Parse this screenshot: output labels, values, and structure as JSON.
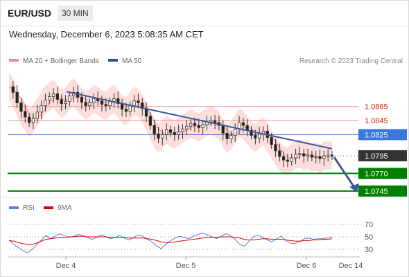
{
  "header": {
    "symbol": "EUR/USD",
    "timeframe": "30 MIN",
    "timestamp": "Wednesday, December 6, 2023 5:08:35 AM CET"
  },
  "legend": {
    "ma20_label": "MA 20 + Bollinger Bands",
    "ma50_label": "MA 50",
    "credit": "Research © 2023 Trading Central",
    "ma20_color": "#f28b82",
    "ma50_color": "#2f4f8f"
  },
  "rsi_legend": {
    "rsi_label": "RSI",
    "ma_label": "9MA",
    "rsi_color": "#5b7fd6",
    "ma_color": "#e00000"
  },
  "colors": {
    "resistance": "#e8948c",
    "pivot": "#3a78e0",
    "support": "#008000",
    "current": "#333333",
    "candle_up": "#ffffff",
    "candle_down": "#222222",
    "band_fill": "#fbd9d6",
    "trendline": "#3a5a9c"
  },
  "chart_data": [
    {
      "type": "candlestick",
      "x_ticks": [
        "Dec 4",
        "Dec 5",
        "Dec 6",
        "Dec 14"
      ],
      "ylim": [
        1.0735,
        1.0905
      ],
      "price_levels": [
        {
          "label": "1.0865",
          "value": 1.0865,
          "kind": "resistance"
        },
        {
          "label": "1.0845",
          "value": 1.0845,
          "kind": "resistance"
        },
        {
          "label": "1.0825",
          "value": 1.0825,
          "kind": "pivot"
        },
        {
          "label": "1.0795",
          "value": 1.0795,
          "kind": "current"
        },
        {
          "label": "1.0770",
          "value": 1.077,
          "kind": "support"
        },
        {
          "label": "1.0745",
          "value": 1.0745,
          "kind": "support"
        }
      ],
      "close_path": [
        1.0893,
        1.0885,
        1.087,
        1.0858,
        1.085,
        1.0842,
        1.0848,
        1.0857,
        1.0866,
        1.0874,
        1.0879,
        1.0883,
        1.0875,
        1.0869,
        1.0872,
        1.088,
        1.0885,
        1.0878,
        1.0871,
        1.0866,
        1.087,
        1.0876,
        1.0873,
        1.0868,
        1.0866,
        1.0872,
        1.0876,
        1.0869,
        1.0861,
        1.0858,
        1.0866,
        1.0873,
        1.087,
        1.0862,
        1.0851,
        1.0838,
        1.0826,
        1.082,
        1.0825,
        1.0832,
        1.0828,
        1.0825,
        1.0829,
        1.0833,
        1.0837,
        1.0841,
        1.0838,
        1.0835,
        1.0839,
        1.0843,
        1.0845,
        1.0842,
        1.0838,
        1.0827,
        1.0819,
        1.0824,
        1.0833,
        1.0842,
        1.0838,
        1.0831,
        1.0824,
        1.082,
        1.0826,
        1.083,
        1.0821,
        1.0811,
        1.0802,
        1.0794,
        1.0789,
        1.0787,
        1.0792,
        1.0797,
        1.0798,
        1.0795,
        1.0796,
        1.0793,
        1.0794,
        1.0791,
        1.0795,
        1.0796,
        1.0795
      ],
      "ma50_trendline": {
        "start": 1.0886,
        "end": 1.0805
      },
      "projection": {
        "from": 1.0795,
        "to": 1.0745
      }
    },
    {
      "type": "line",
      "name": "RSI panel",
      "y_ticks": [
        70,
        50,
        30
      ],
      "ylim": [
        20,
        80
      ],
      "rsi": [
        45,
        38,
        33,
        28,
        24,
        30,
        37,
        45,
        52,
        47,
        51,
        55,
        52,
        49,
        51,
        54,
        52,
        49,
        46,
        49,
        53,
        50,
        47,
        49,
        52,
        48,
        45,
        49,
        53,
        51,
        46,
        42,
        35,
        31,
        38,
        44,
        48,
        51,
        49,
        47,
        51,
        54,
        56,
        53,
        50,
        47,
        51,
        55,
        52,
        46,
        38,
        35,
        43,
        50,
        53,
        49,
        45,
        42,
        47,
        51,
        44,
        40,
        39,
        43,
        47,
        48,
        46,
        47,
        47,
        48,
        50
      ],
      "ma9": [
        44,
        43,
        41,
        39,
        38,
        38,
        40,
        43,
        46,
        47,
        48,
        49,
        49,
        50,
        50,
        51,
        51,
        50,
        50,
        50,
        50,
        50,
        49,
        49,
        49,
        49,
        48,
        48,
        48,
        48,
        47,
        46,
        44,
        42,
        41,
        41,
        42,
        43,
        44,
        45,
        46,
        47,
        48,
        49,
        49,
        49,
        50,
        50,
        50,
        49,
        48,
        46,
        45,
        45,
        46,
        47,
        47,
        46,
        46,
        46,
        45,
        44,
        43,
        43,
        44,
        44,
        45,
        45,
        46,
        46,
        47
      ]
    }
  ]
}
